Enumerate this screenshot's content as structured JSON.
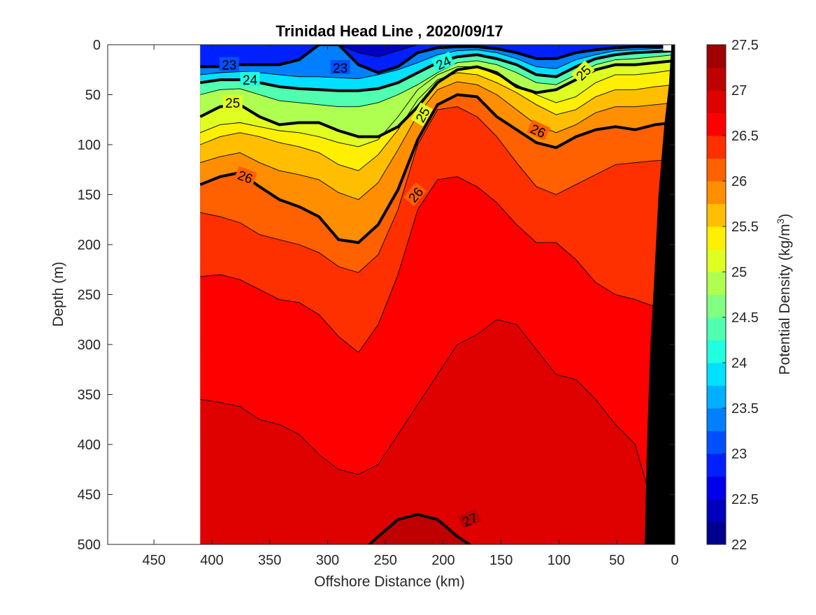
{
  "chart_data": {
    "type": "contour",
    "title": "Trinidad Head Line , 2020/09/17",
    "xlabel": "Offshore Distance (km)",
    "ylabel": "Depth (m)",
    "xlim": [
      490,
      0
    ],
    "ylim": [
      0,
      500
    ],
    "x_reversed": true,
    "y_reversed": true,
    "xticks": [
      450,
      400,
      350,
      300,
      250,
      200,
      150,
      100,
      50,
      0
    ],
    "yticks": [
      0,
      50,
      100,
      150,
      200,
      250,
      300,
      350,
      400,
      450,
      500
    ],
    "data_extent_km": [
      410,
      0
    ],
    "grid": false,
    "colorbar": {
      "label": "Potential Density (kg/m",
      "label_sup": "3",
      "label_close": ")",
      "min": 22,
      "max": 27.5,
      "step": 0.25,
      "ticks": [
        22,
        22.5,
        23,
        23.5,
        24,
        24.5,
        25,
        25.5,
        26,
        26.5,
        27,
        27.5
      ],
      "colors": [
        "#00008f",
        "#0000bf",
        "#0000ef",
        "#0020ff",
        "#0050ff",
        "#0080ff",
        "#00b0ff",
        "#00e0ff",
        "#20ffdf",
        "#50ffaf",
        "#80ff80",
        "#afff50",
        "#dfff20",
        "#ffef00",
        "#ffbf00",
        "#ff8f00",
        "#ff6000",
        "#ff3000",
        "#ff0000",
        "#df0000",
        "#bf0000",
        "#9f0000"
      ]
    },
    "bottom_mask_color": "#000000",
    "isopycnals": [
      {
        "value": 27.0,
        "label": "27",
        "depths": [
          520,
          520,
          520,
          520,
          520,
          520,
          520,
          520,
          510,
          492,
          475,
          470,
          475,
          492,
          505,
          515,
          520,
          520,
          520,
          520,
          520,
          520,
          520,
          520,
          520
        ]
      },
      {
        "value": 26.75,
        "depths": [
          355,
          358,
          362,
          375,
          380,
          390,
          410,
          425,
          430,
          420,
          390,
          360,
          330,
          300,
          290,
          275,
          280,
          305,
          330,
          335,
          355,
          380,
          400,
          470,
          520
        ]
      },
      {
        "value": 26.5,
        "depths": [
          232,
          230,
          235,
          245,
          255,
          258,
          270,
          292,
          308,
          280,
          230,
          165,
          135,
          132,
          142,
          158,
          180,
          198,
          198,
          215,
          238,
          250,
          255,
          262,
          270
        ]
      },
      {
        "value": 26.25,
        "depths": [
          168,
          172,
          178,
          190,
          195,
          200,
          208,
          222,
          228,
          210,
          165,
          100,
          65,
          62,
          72,
          92,
          118,
          142,
          150,
          140,
          130,
          120,
          118,
          116,
          115
        ]
      },
      {
        "value": 26.0,
        "label": "26",
        "depths": [
          140,
          132,
          128,
          142,
          155,
          162,
          172,
          195,
          198,
          180,
          145,
          95,
          60,
          50,
          52,
          72,
          85,
          98,
          103,
          92,
          85,
          82,
          85,
          80,
          78
        ]
      },
      {
        "value": 25.75,
        "depths": [
          118,
          112,
          108,
          118,
          126,
          130,
          135,
          148,
          155,
          138,
          105,
          70,
          45,
          37,
          40,
          50,
          65,
          80,
          88,
          80,
          68,
          62,
          62,
          60,
          58
        ]
      },
      {
        "value": 25.5,
        "depths": [
          100,
          92,
          88,
          92,
          98,
          102,
          108,
          120,
          126,
          110,
          85,
          55,
          35,
          28,
          30,
          38,
          48,
          60,
          70,
          65,
          52,
          45,
          45,
          42,
          40
        ]
      },
      {
        "value": 25.25,
        "depths": [
          88,
          80,
          78,
          82,
          86,
          88,
          92,
          98,
          102,
          95,
          72,
          45,
          30,
          22,
          22,
          30,
          40,
          50,
          58,
          52,
          38,
          30,
          30,
          28,
          25
        ]
      },
      {
        "value": 25.0,
        "label": "25",
        "depths": [
          72,
          62,
          60,
          72,
          80,
          78,
          78,
          86,
          92,
          92,
          82,
          62,
          38,
          25,
          22,
          28,
          42,
          48,
          45,
          35,
          25,
          20,
          20,
          18,
          16
        ]
      },
      {
        "value": 24.5,
        "depths": [
          50,
          45,
          44,
          50,
          56,
          58,
          60,
          62,
          62,
          58,
          50,
          40,
          28,
          18,
          16,
          20,
          28,
          38,
          40,
          30,
          20,
          15,
          14,
          12,
          10
        ]
      },
      {
        "value": 24.0,
        "label": "24",
        "depths": [
          38,
          35,
          35,
          38,
          42,
          44,
          45,
          46,
          46,
          44,
          38,
          28,
          18,
          12,
          10,
          14,
          20,
          30,
          32,
          22,
          14,
          10,
          8,
          7,
          6
        ]
      },
      {
        "value": 23.5,
        "depths": [
          30,
          28,
          27,
          28,
          30,
          32,
          32,
          33,
          34,
          30,
          25,
          18,
          10,
          6,
          5,
          8,
          14,
          22,
          24,
          15,
          10,
          6,
          5,
          4,
          3
        ]
      },
      {
        "value": 23.0,
        "label": "23",
        "depths": [
          22,
          22,
          20,
          20,
          20,
          15,
          0,
          0,
          20,
          28,
          22,
          8,
          3,
          2,
          2,
          4,
          8,
          14,
          14,
          8,
          5,
          3,
          2,
          2,
          2
        ]
      },
      {
        "value": 22.5,
        "depths": [
          0,
          0,
          0,
          0,
          0,
          0,
          0,
          0,
          8,
          12,
          6,
          0,
          0,
          0,
          0,
          0,
          0,
          0,
          0,
          0,
          0,
          0,
          0,
          0,
          0
        ]
      }
    ],
    "contour_labels": [
      {
        "text": "23",
        "x": 385,
        "y": 20,
        "angle": 0
      },
      {
        "text": "23",
        "x": 289,
        "y": 23,
        "angle": 0
      },
      {
        "text": "24",
        "x": 367,
        "y": 35,
        "angle": 0
      },
      {
        "text": "24",
        "x": 200,
        "y": 18,
        "angle": -25
      },
      {
        "text": "25",
        "x": 382,
        "y": 58,
        "angle": 0
      },
      {
        "text": "25",
        "x": 79,
        "y": 28,
        "angle": -45
      },
      {
        "text": "25",
        "x": 218,
        "y": 70,
        "angle": -60
      },
      {
        "text": "26",
        "x": 371,
        "y": 132,
        "angle": 20
      },
      {
        "text": "26",
        "x": 224,
        "y": 150,
        "angle": -50
      },
      {
        "text": "26",
        "x": 118,
        "y": 86,
        "angle": 25
      },
      {
        "text": "27",
        "x": 177,
        "y": 475,
        "angle": -25
      }
    ]
  }
}
